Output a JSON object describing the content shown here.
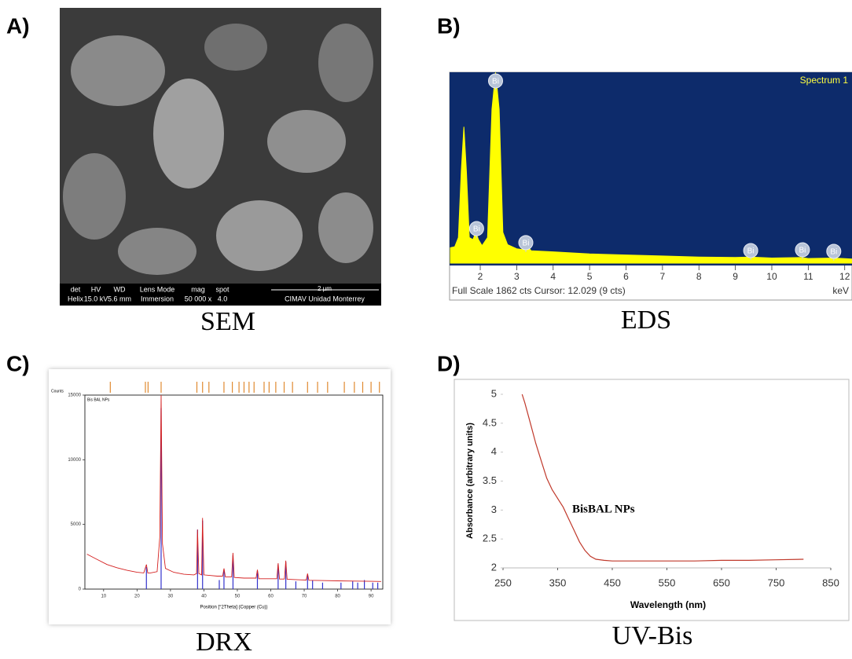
{
  "panel_labels": [
    "A)",
    "B)",
    "C)",
    "D)"
  ],
  "captions": [
    "SEM",
    "EDS",
    "DRX",
    "UV-Bis"
  ],
  "sem": {
    "info_bar": {
      "headers": [
        "det",
        "HV",
        "WD",
        "Lens Mode",
        "mag",
        "spot"
      ],
      "values": [
        "Helix",
        "15.0 kV",
        "5.6 mm",
        "Immersion",
        "50 000 x",
        "4.0"
      ],
      "scale_bar": "2 µm",
      "institution": "CIMAV Unidad Monterrey"
    }
  },
  "chart_data": [
    {
      "type": "area",
      "title": "Spectrum 1",
      "color": "#ffff00",
      "background": "#0d2b6b",
      "x": [
        1.18,
        1.3,
        1.4,
        1.48,
        1.55,
        1.62,
        1.7,
        1.8,
        1.88,
        1.95,
        2.05,
        2.2,
        2.32,
        2.42,
        2.52,
        2.62,
        2.75,
        3.0,
        3.2,
        3.28,
        3.4,
        4,
        5,
        6,
        7,
        8,
        9,
        9.4,
        10,
        10.8,
        11,
        11.7,
        12.2
      ],
      "values": [
        150,
        160,
        250,
        900,
        1330,
        900,
        250,
        230,
        300,
        230,
        170,
        250,
        1500,
        1860,
        1500,
        300,
        180,
        140,
        130,
        170,
        120,
        110,
        90,
        80,
        70,
        60,
        55,
        60,
        50,
        55,
        45,
        50,
        40
      ],
      "xlim": [
        1.18,
        12.2
      ],
      "ylim": [
        0,
        1862
      ],
      "xticks": [
        2,
        3,
        4,
        5,
        6,
        7,
        8,
        9,
        10,
        11,
        12
      ],
      "annotations": [
        {
          "text": "Bi",
          "x": 2.42,
          "y": 1778
        },
        {
          "text": "Bi",
          "x": 1.9,
          "y": 337
        },
        {
          "text": "Bi",
          "x": 3.25,
          "y": 200
        },
        {
          "text": "Bi",
          "x": 9.42,
          "y": 123
        },
        {
          "text": "Bi",
          "x": 10.84,
          "y": 130
        },
        {
          "text": "Bi",
          "x": 11.7,
          "y": 115
        }
      ],
      "status": "Full Scale 1862 cts Cursor: 12.029  (9 cts)",
      "x_unit": "keV"
    },
    {
      "type": "line",
      "ylabel": "Counts",
      "xlabel": "Position [°2Theta] (Copper (Cu))",
      "series": [
        {
          "name": "Bis BAL NPs",
          "color": "#d42020",
          "x": [
            5,
            8,
            11,
            14,
            17,
            20,
            22,
            22.8,
            23.2,
            24,
            26,
            26.8,
            27.2,
            27.6,
            28.5,
            31,
            34,
            37,
            37.8,
            38.1,
            38.5,
            39.3,
            39.6,
            40,
            42,
            44,
            45.6,
            46,
            46.4,
            48.3,
            48.7,
            49.1,
            52,
            55.6,
            56,
            56.4,
            60,
            61.8,
            62.2,
            62.6,
            64.1,
            64.5,
            64.9,
            68,
            70.6,
            71,
            71.4,
            75,
            80,
            85,
            90,
            93
          ],
          "values": [
            2700,
            2300,
            1900,
            1650,
            1450,
            1300,
            1250,
            1900,
            1250,
            1250,
            1350,
            4000,
            15000,
            3500,
            1600,
            1300,
            1150,
            1100,
            1200,
            4600,
            1200,
            1100,
            5500,
            1100,
            1050,
            1000,
            1000,
            1600,
            950,
            950,
            2800,
            900,
            850,
            850,
            1500,
            800,
            800,
            800,
            2000,
            780,
            780,
            2200,
            760,
            720,
            700,
            1200,
            680,
            660,
            640,
            620,
            600,
            590
          ]
        }
      ],
      "sticks": {
        "color": "#3333cc",
        "x": [
          22.8,
          27.2,
          38.1,
          39.6,
          44.6,
          46,
          48.7,
          56,
          62.2,
          64.5,
          67.5,
          71,
          72.5,
          75.5,
          81,
          84.5,
          86,
          88,
          90.5,
          92
        ],
        "values": [
          1700,
          14000,
          4600,
          5300,
          700,
          1500,
          2600,
          1400,
          1900,
          2100,
          600,
          1100,
          700,
          500,
          500,
          600,
          500,
          700,
          500,
          500
        ]
      },
      "reference_ticks": {
        "color": "#e08a30",
        "x": [
          12,
          22.5,
          23.3,
          27.2,
          37.9,
          39.6,
          41.5,
          46,
          48.5,
          50.5,
          52,
          53.5,
          55,
          58,
          59.5,
          61.5,
          64,
          66.5,
          71,
          74,
          77,
          82,
          85,
          87.5,
          90,
          92.5
        ]
      },
      "xlim": [
        4.4,
        93.5
      ],
      "ylim": [
        0,
        15000
      ],
      "xticks": [
        10,
        20,
        30,
        40,
        50,
        60,
        70,
        80,
        90
      ],
      "yticks": [
        0,
        5000,
        10000,
        15000
      ]
    },
    {
      "type": "line",
      "ylabel": "Absorbance (arbitrary units)",
      "xlabel": "Wavelength (nm)",
      "annotation": "BisBAL NPs",
      "series": [
        {
          "color": "#c0392b",
          "x": [
            285,
            290,
            300,
            310,
            320,
            330,
            340,
            350,
            360,
            370,
            380,
            390,
            400,
            410,
            420,
            435,
            450,
            500,
            550,
            600,
            650,
            700,
            750,
            800
          ],
          "values": [
            5,
            4.85,
            4.5,
            4.15,
            3.85,
            3.55,
            3.35,
            3.2,
            3.05,
            2.85,
            2.65,
            2.45,
            2.3,
            2.2,
            2.15,
            2.13,
            2.12,
            2.12,
            2.12,
            2.12,
            2.13,
            2.13,
            2.14,
            2.15
          ]
        }
      ],
      "xlim": [
        250,
        850
      ],
      "ylim": [
        2,
        5
      ],
      "xticks": [
        250,
        350,
        450,
        550,
        650,
        750,
        850
      ],
      "yticks": [
        2,
        2.5,
        3,
        3.5,
        4,
        4.5,
        5
      ]
    }
  ]
}
